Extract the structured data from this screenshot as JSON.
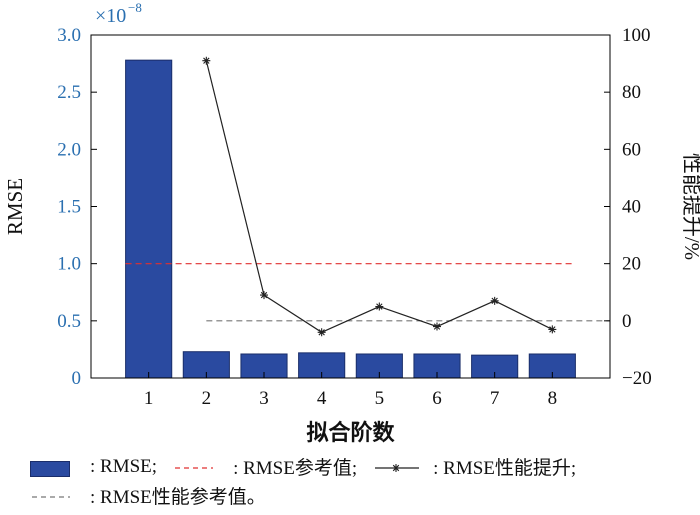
{
  "chart_data": {
    "type": "bar+line",
    "categories": [
      "1",
      "2",
      "3",
      "4",
      "5",
      "6",
      "7",
      "8"
    ],
    "xlabel": "拟合阶数",
    "left_axis": {
      "label": "RMSE",
      "exponent_label": "×10",
      "exponent": "−8",
      "ylim": [
        0,
        3.0
      ],
      "ticks": [
        "0",
        "0.5",
        "1.0",
        "1.5",
        "2.0",
        "2.5",
        "3.0"
      ],
      "tick_values": [
        0,
        0.5,
        1.0,
        1.5,
        2.0,
        2.5,
        3.0
      ]
    },
    "right_axis": {
      "label": "性能提升/%",
      "ylim": [
        -20,
        100
      ],
      "ticks": [
        "−20",
        "0",
        "20",
        "40",
        "60",
        "80",
        "100"
      ],
      "tick_values": [
        -20,
        0,
        20,
        40,
        60,
        80,
        100
      ]
    },
    "series": [
      {
        "name": "RMSE",
        "type": "bar",
        "axis": "left",
        "x": [
          1,
          2,
          3,
          4,
          5,
          6,
          7,
          8
        ],
        "values": [
          2.78,
          0.23,
          0.21,
          0.22,
          0.21,
          0.21,
          0.2,
          0.21
        ]
      },
      {
        "name": "RMSE参考值",
        "type": "hline",
        "axis": "left",
        "y": 1.0,
        "x_range": [
          1,
          8
        ]
      },
      {
        "name": "RMSE性能提升",
        "type": "line",
        "axis": "right",
        "x": [
          2,
          3,
          4,
          5,
          6,
          7,
          8
        ],
        "values": [
          91,
          9,
          -4,
          5,
          -2,
          7,
          -3
        ]
      },
      {
        "name": "RMSE性能参考值",
        "type": "hline",
        "axis": "right",
        "y": 0,
        "x_range": [
          2,
          9
        ]
      }
    ],
    "colors": {
      "bar": "#2a4aa0",
      "bar_edge": "#1a2d6a",
      "ref_red": "#e03030",
      "line": "#222222",
      "ref_gray": "#777777",
      "left_axis": "#2a6fb0"
    }
  },
  "legend": {
    "rmse": ": RMSE;",
    "rmse_ref": ": RMSE参考值;",
    "rmse_gain": ": RMSE性能提升;",
    "rmse_gain_ref": ": RMSE性能参考值。"
  }
}
